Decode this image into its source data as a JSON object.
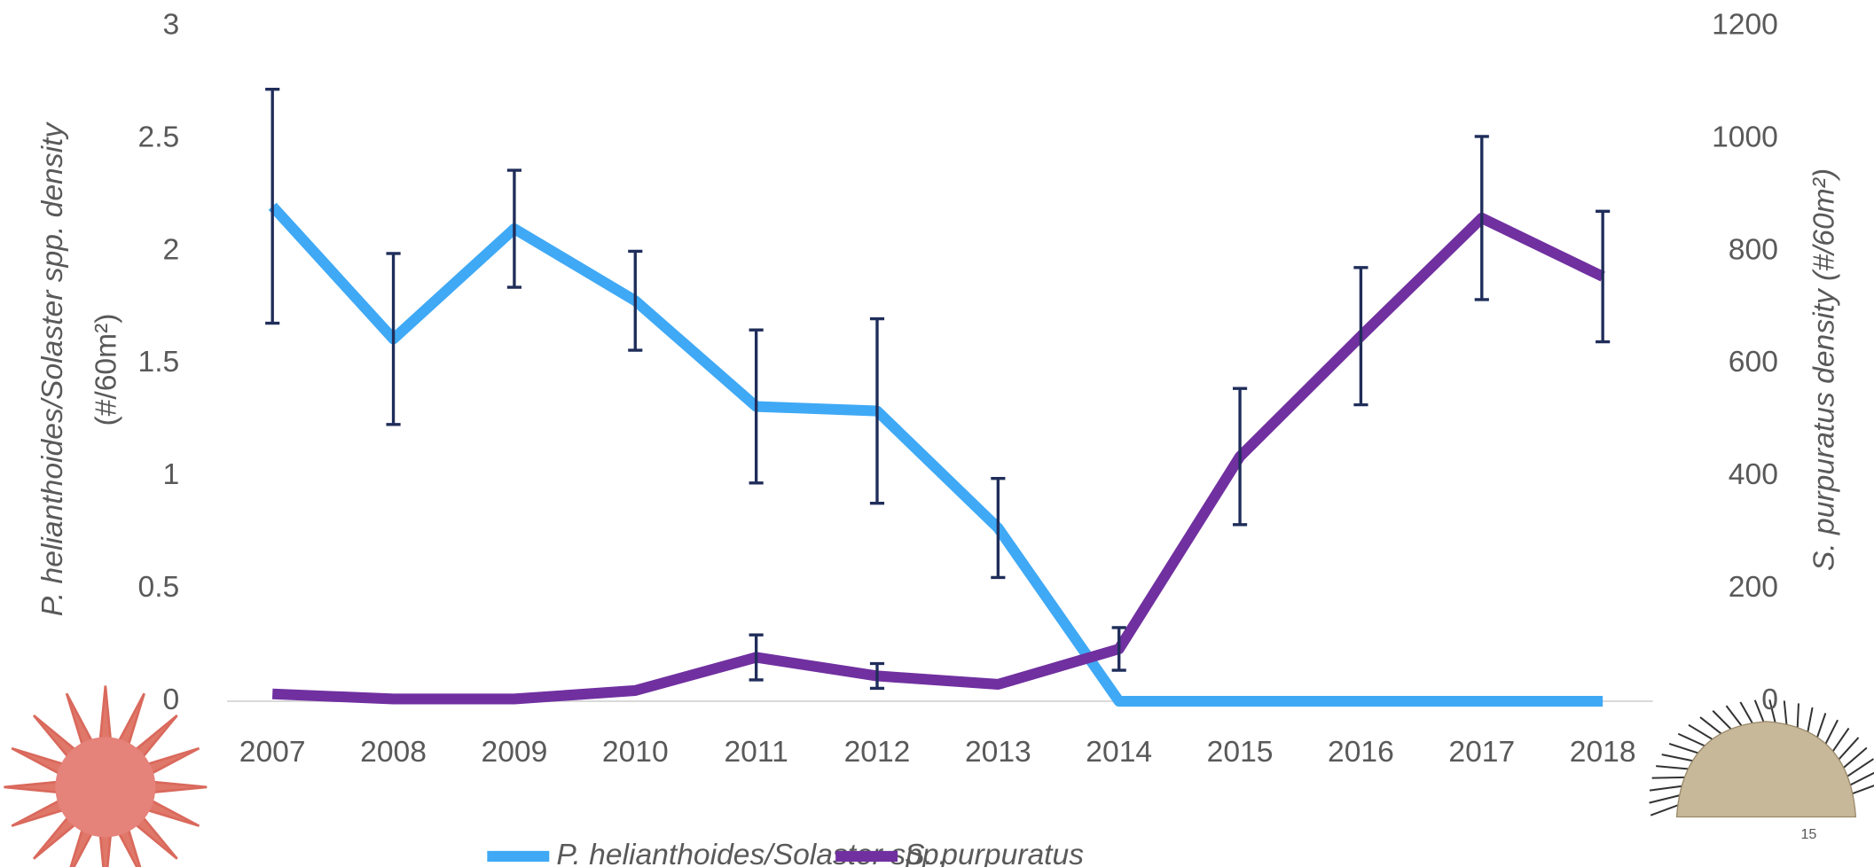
{
  "chart_data": {
    "type": "line",
    "categories": [
      "2007",
      "2008",
      "2009",
      "2010",
      "2011",
      "2012",
      "2013",
      "2014",
      "2015",
      "2016",
      "2017",
      "2018"
    ],
    "ylabel": [
      "P. helianthoides/Solaster spp. density",
      "(#/60m²)"
    ],
    "y2label": "S. purpuratus density (#/60m²)",
    "ylim": [
      0,
      3
    ],
    "yticks": [
      0,
      0.5,
      1,
      1.5,
      2,
      2.5,
      3
    ],
    "y2lim": [
      0,
      1200
    ],
    "y2ticks": [
      0,
      200,
      400,
      600,
      800,
      1000,
      1200
    ],
    "series": [
      {
        "name": "P. helianthoides/Solaster spp.",
        "color": "#3fa9f5",
        "values": [
          2.2,
          1.61,
          2.1,
          1.78,
          1.31,
          1.29,
          0.77,
          0,
          0,
          0,
          0,
          0
        ],
        "errors": [
          0.52,
          0.38,
          0.26,
          0.22,
          0.34,
          0.41,
          0.22,
          null,
          null,
          null,
          null,
          null
        ]
      },
      {
        "name": "S. purpuratus",
        "color": "#7030a0",
        "axis": "y2",
        "values": [
          13,
          4,
          4,
          19,
          78,
          45,
          30,
          93,
          435,
          649,
          859,
          755
        ],
        "errors": [
          null,
          null,
          null,
          null,
          40,
          22,
          null,
          38,
          121,
          122,
          145,
          116
        ]
      }
    ],
    "error_bar_color": "#1f2d5a",
    "legend": "bottom",
    "page_number": "15"
  }
}
